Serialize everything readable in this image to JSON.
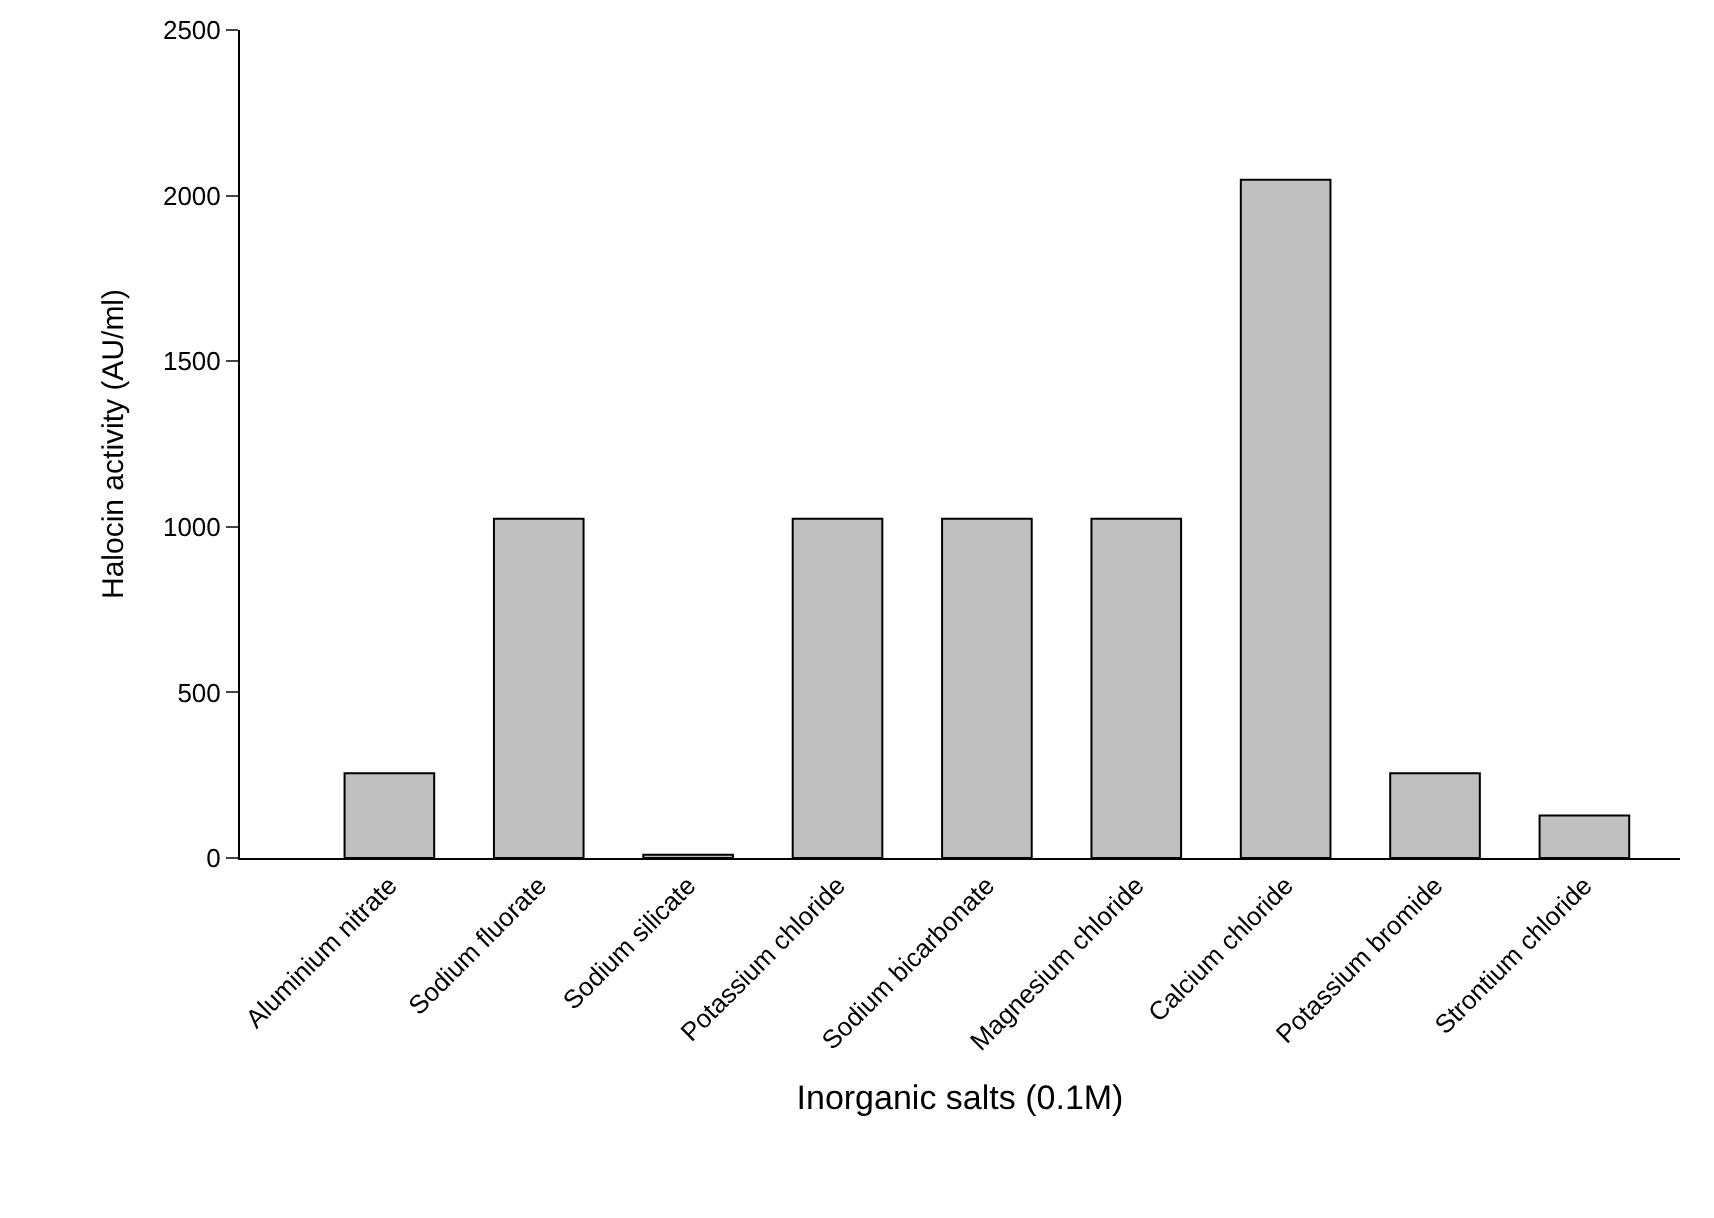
{
  "chart_data": {
    "type": "bar",
    "xlabel": "Inorganic salts (0.1M)",
    "ylabel": "Halocin activity (AU/ml)",
    "categories": [
      "Aluminium nitrate",
      "Sodium fluorate",
      "Sodium silicate",
      "Potassium chloride",
      "Sodium bicarbonate",
      "Magnesium chloride",
      "Calcium chloride",
      "Potassium bromide",
      "Strontium chloride"
    ],
    "values": [
      256,
      1024,
      10,
      1024,
      1024,
      1024,
      2048,
      256,
      128
    ],
    "color": "#c0c0c0",
    "ylim": [
      0,
      2500
    ],
    "yticks": [
      0,
      500,
      1000,
      1500,
      2000,
      2500
    ]
  }
}
